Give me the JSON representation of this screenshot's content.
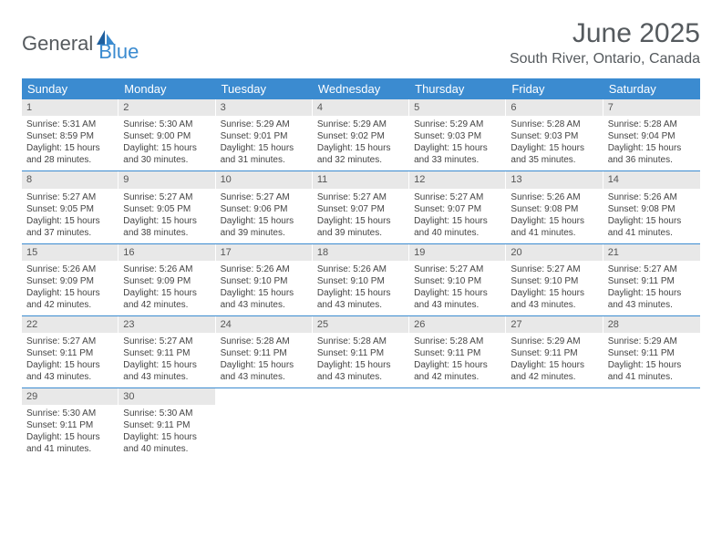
{
  "brand": {
    "text_general": "General",
    "text_blue": "Blue"
  },
  "title": {
    "month_year": "June 2025",
    "location": "South River, Ontario, Canada"
  },
  "colors": {
    "header_bg": "#3b8bd0",
    "header_text": "#ffffff",
    "daynum_bg": "#e8e8e8",
    "row_divider": "#3b8bd0",
    "body_text": "#444444",
    "title_text": "#555a5e"
  },
  "day_headers": [
    "Sunday",
    "Monday",
    "Tuesday",
    "Wednesday",
    "Thursday",
    "Friday",
    "Saturday"
  ],
  "weeks": [
    [
      {
        "n": "1",
        "sunrise": "Sunrise: 5:31 AM",
        "sunset": "Sunset: 8:59 PM",
        "daylight": "Daylight: 15 hours and 28 minutes."
      },
      {
        "n": "2",
        "sunrise": "Sunrise: 5:30 AM",
        "sunset": "Sunset: 9:00 PM",
        "daylight": "Daylight: 15 hours and 30 minutes."
      },
      {
        "n": "3",
        "sunrise": "Sunrise: 5:29 AM",
        "sunset": "Sunset: 9:01 PM",
        "daylight": "Daylight: 15 hours and 31 minutes."
      },
      {
        "n": "4",
        "sunrise": "Sunrise: 5:29 AM",
        "sunset": "Sunset: 9:02 PM",
        "daylight": "Daylight: 15 hours and 32 minutes."
      },
      {
        "n": "5",
        "sunrise": "Sunrise: 5:29 AM",
        "sunset": "Sunset: 9:03 PM",
        "daylight": "Daylight: 15 hours and 33 minutes."
      },
      {
        "n": "6",
        "sunrise": "Sunrise: 5:28 AM",
        "sunset": "Sunset: 9:03 PM",
        "daylight": "Daylight: 15 hours and 35 minutes."
      },
      {
        "n": "7",
        "sunrise": "Sunrise: 5:28 AM",
        "sunset": "Sunset: 9:04 PM",
        "daylight": "Daylight: 15 hours and 36 minutes."
      }
    ],
    [
      {
        "n": "8",
        "sunrise": "Sunrise: 5:27 AM",
        "sunset": "Sunset: 9:05 PM",
        "daylight": "Daylight: 15 hours and 37 minutes."
      },
      {
        "n": "9",
        "sunrise": "Sunrise: 5:27 AM",
        "sunset": "Sunset: 9:05 PM",
        "daylight": "Daylight: 15 hours and 38 minutes."
      },
      {
        "n": "10",
        "sunrise": "Sunrise: 5:27 AM",
        "sunset": "Sunset: 9:06 PM",
        "daylight": "Daylight: 15 hours and 39 minutes."
      },
      {
        "n": "11",
        "sunrise": "Sunrise: 5:27 AM",
        "sunset": "Sunset: 9:07 PM",
        "daylight": "Daylight: 15 hours and 39 minutes."
      },
      {
        "n": "12",
        "sunrise": "Sunrise: 5:27 AM",
        "sunset": "Sunset: 9:07 PM",
        "daylight": "Daylight: 15 hours and 40 minutes."
      },
      {
        "n": "13",
        "sunrise": "Sunrise: 5:26 AM",
        "sunset": "Sunset: 9:08 PM",
        "daylight": "Daylight: 15 hours and 41 minutes."
      },
      {
        "n": "14",
        "sunrise": "Sunrise: 5:26 AM",
        "sunset": "Sunset: 9:08 PM",
        "daylight": "Daylight: 15 hours and 41 minutes."
      }
    ],
    [
      {
        "n": "15",
        "sunrise": "Sunrise: 5:26 AM",
        "sunset": "Sunset: 9:09 PM",
        "daylight": "Daylight: 15 hours and 42 minutes."
      },
      {
        "n": "16",
        "sunrise": "Sunrise: 5:26 AM",
        "sunset": "Sunset: 9:09 PM",
        "daylight": "Daylight: 15 hours and 42 minutes."
      },
      {
        "n": "17",
        "sunrise": "Sunrise: 5:26 AM",
        "sunset": "Sunset: 9:10 PM",
        "daylight": "Daylight: 15 hours and 43 minutes."
      },
      {
        "n": "18",
        "sunrise": "Sunrise: 5:26 AM",
        "sunset": "Sunset: 9:10 PM",
        "daylight": "Daylight: 15 hours and 43 minutes."
      },
      {
        "n": "19",
        "sunrise": "Sunrise: 5:27 AM",
        "sunset": "Sunset: 9:10 PM",
        "daylight": "Daylight: 15 hours and 43 minutes."
      },
      {
        "n": "20",
        "sunrise": "Sunrise: 5:27 AM",
        "sunset": "Sunset: 9:10 PM",
        "daylight": "Daylight: 15 hours and 43 minutes."
      },
      {
        "n": "21",
        "sunrise": "Sunrise: 5:27 AM",
        "sunset": "Sunset: 9:11 PM",
        "daylight": "Daylight: 15 hours and 43 minutes."
      }
    ],
    [
      {
        "n": "22",
        "sunrise": "Sunrise: 5:27 AM",
        "sunset": "Sunset: 9:11 PM",
        "daylight": "Daylight: 15 hours and 43 minutes."
      },
      {
        "n": "23",
        "sunrise": "Sunrise: 5:27 AM",
        "sunset": "Sunset: 9:11 PM",
        "daylight": "Daylight: 15 hours and 43 minutes."
      },
      {
        "n": "24",
        "sunrise": "Sunrise: 5:28 AM",
        "sunset": "Sunset: 9:11 PM",
        "daylight": "Daylight: 15 hours and 43 minutes."
      },
      {
        "n": "25",
        "sunrise": "Sunrise: 5:28 AM",
        "sunset": "Sunset: 9:11 PM",
        "daylight": "Daylight: 15 hours and 43 minutes."
      },
      {
        "n": "26",
        "sunrise": "Sunrise: 5:28 AM",
        "sunset": "Sunset: 9:11 PM",
        "daylight": "Daylight: 15 hours and 42 minutes."
      },
      {
        "n": "27",
        "sunrise": "Sunrise: 5:29 AM",
        "sunset": "Sunset: 9:11 PM",
        "daylight": "Daylight: 15 hours and 42 minutes."
      },
      {
        "n": "28",
        "sunrise": "Sunrise: 5:29 AM",
        "sunset": "Sunset: 9:11 PM",
        "daylight": "Daylight: 15 hours and 41 minutes."
      }
    ],
    [
      {
        "n": "29",
        "sunrise": "Sunrise: 5:30 AM",
        "sunset": "Sunset: 9:11 PM",
        "daylight": "Daylight: 15 hours and 41 minutes."
      },
      {
        "n": "30",
        "sunrise": "Sunrise: 5:30 AM",
        "sunset": "Sunset: 9:11 PM",
        "daylight": "Daylight: 15 hours and 40 minutes."
      },
      null,
      null,
      null,
      null,
      null
    ]
  ]
}
